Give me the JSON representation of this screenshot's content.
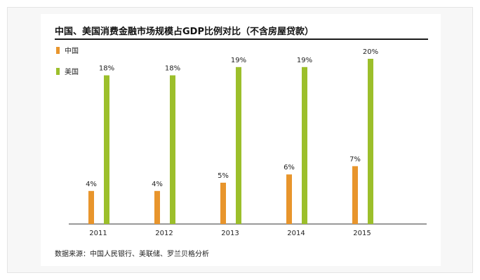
{
  "title": "中国、美国消费金融市场规模占GDP比例对比（不含房屋贷款）",
  "source": "数据来源：中国人民银行、美联储、罗兰贝格分析",
  "chart_data": {
    "type": "bar",
    "title": "中国、美国消费金融市场规模占GDP比例对比（不含房屋贷款）",
    "categories": [
      "2011",
      "2012",
      "2013",
      "2014",
      "2015"
    ],
    "series": [
      {
        "name": "中国",
        "color": "#e8952c",
        "values": [
          4,
          4,
          5,
          6,
          7
        ],
        "labels": [
          "4%",
          "4%",
          "5%",
          "6%",
          "7%"
        ]
      },
      {
        "name": "美国",
        "color": "#9cbf2b",
        "values": [
          18,
          18,
          19,
          19,
          20
        ],
        "labels": [
          "18%",
          "18%",
          "19%",
          "19%",
          "20%"
        ]
      }
    ],
    "legend_position": "top-left",
    "grid": false
  }
}
